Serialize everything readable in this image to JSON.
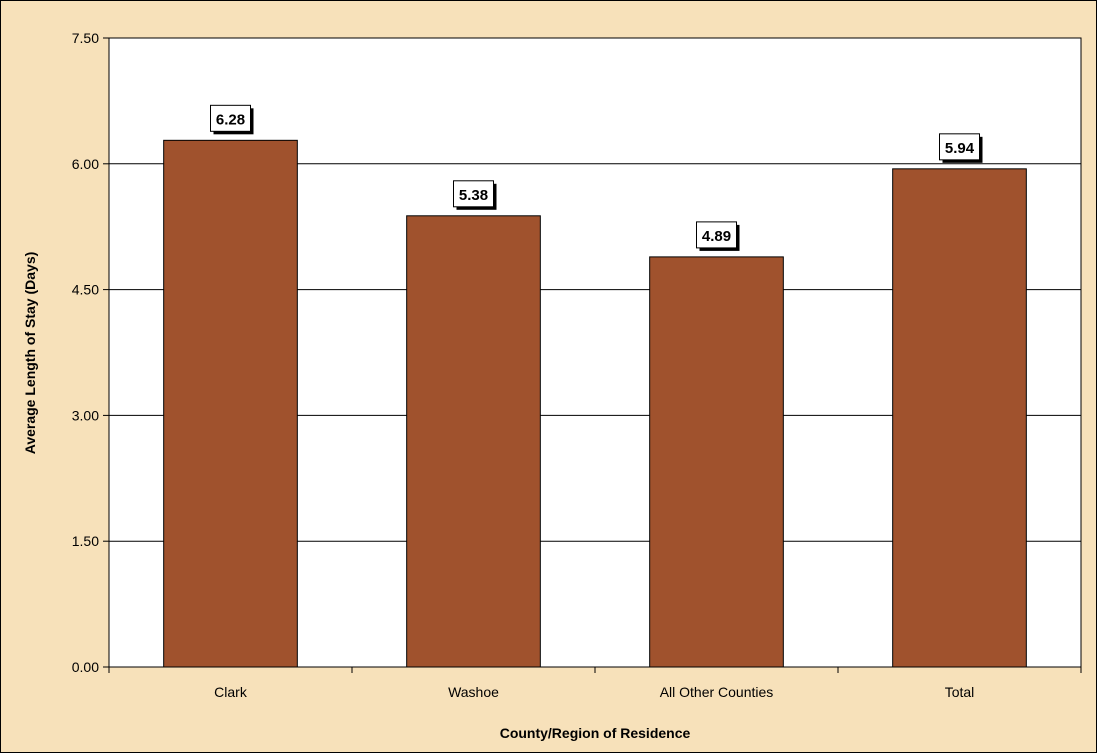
{
  "chart_data": {
    "type": "bar",
    "title": "",
    "xlabel": "County/Region of Residence",
    "ylabel": "Average Length of Stay (Days)",
    "categories": [
      "Clark",
      "Washoe",
      "All Other Counties",
      "Total"
    ],
    "values": [
      6.28,
      5.38,
      4.89,
      5.94
    ],
    "data_labels": [
      "6.28",
      "5.38",
      "4.89",
      "5.94"
    ],
    "ylim": [
      0,
      7.5
    ],
    "yticks": [
      "0.00",
      "1.50",
      "3.00",
      "4.50",
      "6.00",
      "7.50"
    ],
    "grid": true,
    "legend": "none"
  },
  "colors": {
    "bar": "#A0522D",
    "background": "#F7E1BA",
    "plot_area": "#ffffff",
    "gridline": "#000000"
  }
}
